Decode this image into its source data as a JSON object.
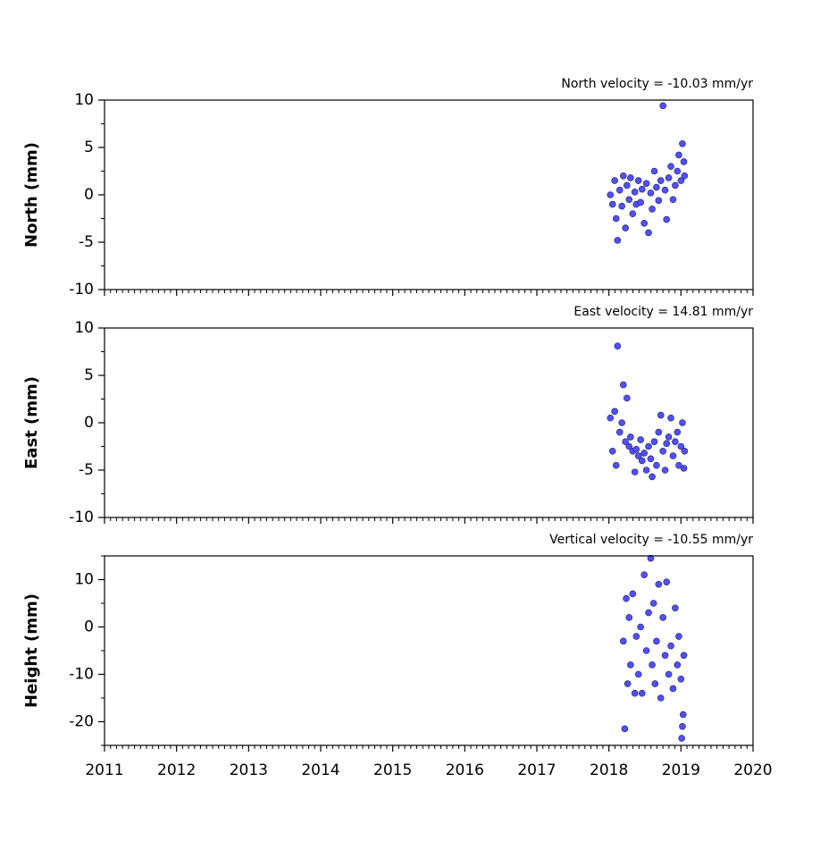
{
  "chart_data": [
    {
      "type": "scatter",
      "title": "North velocity = -10.03 mm/yr",
      "y_label": "North (mm)",
      "xlim": [
        2011,
        2020
      ],
      "xticks": [
        2011,
        2012,
        2013,
        2014,
        2015,
        2016,
        2017,
        2018,
        2019,
        2020
      ],
      "ylim": [
        -10,
        10
      ],
      "yticks": [
        -10,
        -5,
        0,
        5,
        10
      ],
      "color": "#5050ff",
      "x": [
        2018.02,
        2018.05,
        2018.08,
        2018.1,
        2018.12,
        2018.15,
        2018.18,
        2018.2,
        2018.23,
        2018.25,
        2018.28,
        2018.3,
        2018.33,
        2018.36,
        2018.38,
        2018.41,
        2018.44,
        2018.46,
        2018.49,
        2018.52,
        2018.55,
        2018.58,
        2018.6,
        2018.63,
        2018.66,
        2018.69,
        2018.72,
        2018.75,
        2018.78,
        2018.8,
        2018.83,
        2018.86,
        2018.89,
        2018.92,
        2018.95,
        2018.97,
        2019.0,
        2019.02,
        2019.04,
        2019.05
      ],
      "values": [
        0,
        -1,
        1.5,
        -2.5,
        -4.8,
        0.5,
        -1.2,
        2,
        -3.5,
        1,
        -0.5,
        1.8,
        -2,
        0.3,
        -1,
        1.5,
        -0.8,
        0.6,
        -3,
        1.2,
        -4,
        0.2,
        -1.5,
        2.5,
        0.8,
        -0.6,
        1.5,
        9.4,
        0.5,
        -2.6,
        1.8,
        3,
        -0.5,
        1,
        2.5,
        4.2,
        1.5,
        5.4,
        3.5,
        2
      ]
    },
    {
      "type": "scatter",
      "title": "East velocity = 14.81 mm/yr",
      "y_label": "East (mm)",
      "xlim": [
        2011,
        2020
      ],
      "xticks": [
        2011,
        2012,
        2013,
        2014,
        2015,
        2016,
        2017,
        2018,
        2019,
        2020
      ],
      "ylim": [
        -10,
        10
      ],
      "yticks": [
        -10,
        -5,
        0,
        5,
        10
      ],
      "color": "#5050ff",
      "x": [
        2018.02,
        2018.05,
        2018.08,
        2018.1,
        2018.12,
        2018.15,
        2018.18,
        2018.2,
        2018.23,
        2018.25,
        2018.28,
        2018.3,
        2018.33,
        2018.36,
        2018.38,
        2018.41,
        2018.44,
        2018.46,
        2018.49,
        2018.52,
        2018.55,
        2018.58,
        2018.6,
        2018.63,
        2018.66,
        2018.69,
        2018.72,
        2018.75,
        2018.78,
        2018.8,
        2018.83,
        2018.86,
        2018.89,
        2018.92,
        2018.95,
        2018.97,
        2019.0,
        2019.02,
        2019.04,
        2019.05
      ],
      "values": [
        0.5,
        -3,
        1.2,
        -4.5,
        8.1,
        -1,
        0,
        4,
        -2,
        2.6,
        -2.5,
        -1.5,
        -3,
        -5.2,
        -2.8,
        -3.5,
        -1.8,
        -4,
        -3.2,
        -5,
        -2.5,
        -3.8,
        -5.7,
        -2,
        -4.5,
        -1,
        0.8,
        -3,
        -5,
        -2.2,
        -1.5,
        0.5,
        -3.5,
        -2,
        -1,
        -4.5,
        -2.5,
        0,
        -4.8,
        -3
      ]
    },
    {
      "type": "scatter",
      "title": "Vertical velocity = -10.55 mm/yr",
      "y_label": "Height (mm)",
      "xlim": [
        2011,
        2020
      ],
      "xticks": [
        2011,
        2012,
        2013,
        2014,
        2015,
        2016,
        2017,
        2018,
        2019,
        2020
      ],
      "ylim": [
        -25,
        15
      ],
      "yticks": [
        -20,
        -10,
        0,
        10
      ],
      "color": "#5050ff",
      "x": [
        2018.2,
        2018.22,
        2018.24,
        2018.26,
        2018.28,
        2018.3,
        2018.33,
        2018.36,
        2018.38,
        2018.41,
        2018.44,
        2018.46,
        2018.49,
        2018.52,
        2018.55,
        2018.58,
        2018.6,
        2018.62,
        2018.64,
        2018.66,
        2018.69,
        2018.72,
        2018.75,
        2018.78,
        2018.8,
        2018.83,
        2018.86,
        2018.89,
        2018.92,
        2018.95,
        2018.97,
        2019.0,
        2019.01,
        2019.02,
        2019.03,
        2019.04
      ],
      "values": [
        -3,
        -21.5,
        6,
        -12,
        2,
        -8,
        7,
        -14,
        -2,
        -10,
        0,
        -14,
        11,
        -5,
        3,
        14.5,
        -8,
        5,
        -12,
        -3,
        9,
        -15,
        2,
        -6,
        9.5,
        -10,
        -4,
        -13,
        4,
        -8,
        -2,
        -11,
        -23.5,
        -21,
        -18.5,
        -6
      ]
    }
  ]
}
